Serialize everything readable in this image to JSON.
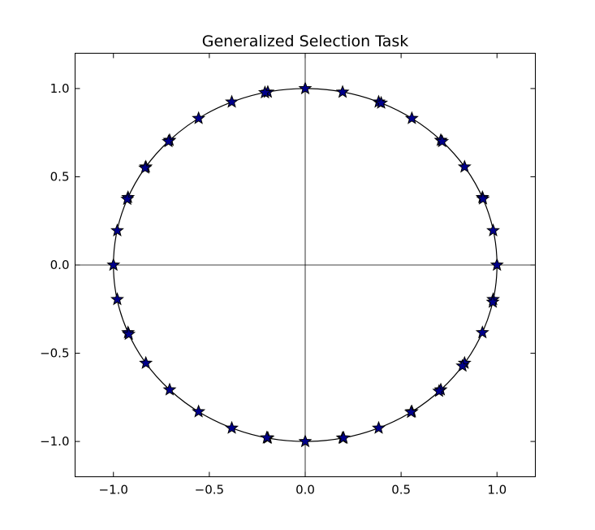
{
  "chart_data": {
    "type": "scatter",
    "title": "Generalized Selection Task",
    "xlabel": "",
    "ylabel": "",
    "xlim": [
      -1.2,
      1.2
    ],
    "ylim": [
      -1.2,
      1.2
    ],
    "xticks": [
      -1.0,
      -0.5,
      0.0,
      0.5,
      1.0
    ],
    "yticks": [
      -1.0,
      -0.5,
      0.0,
      0.5,
      1.0
    ],
    "xtick_labels": [
      "−1.0",
      "−0.5",
      "0.0",
      "0.5",
      "1.0"
    ],
    "ytick_labels": [
      "−1.0",
      "−0.5",
      "0.0",
      "0.5",
      "1.0"
    ],
    "grid": false,
    "legend": "none",
    "reference_circle": {
      "center": [
        0,
        0
      ],
      "radius": 1.0,
      "color": "#000000"
    },
    "axis_lines": [
      {
        "x": 0
      },
      {
        "y": 0
      }
    ],
    "marker": "star",
    "marker_color": "#00008b",
    "marker_edge": "#000000",
    "points": {
      "x": [
        0.0,
        0.195,
        0.383,
        0.396,
        0.556,
        0.707,
        0.714,
        0.831,
        0.924,
        0.927,
        0.98,
        1.0,
        0.98,
        0.978,
        0.924,
        0.831,
        0.82,
        0.707,
        0.698,
        0.556,
        0.552,
        0.383,
        0.195,
        0.2,
        0.0,
        -0.195,
        -0.2,
        -0.383,
        -0.556,
        -0.707,
        -0.831,
        -0.924,
        -0.92,
        -0.98,
        -1.0,
        -0.98,
        -0.924,
        -0.928,
        -0.831,
        -0.835,
        -0.707,
        -0.713,
        -0.556,
        -0.383,
        -0.195,
        -0.21
      ],
      "y": [
        1.0,
        0.98,
        0.924,
        0.918,
        0.831,
        0.707,
        0.7,
        0.556,
        0.383,
        0.375,
        0.195,
        0.0,
        -0.195,
        -0.21,
        -0.383,
        -0.556,
        -0.572,
        -0.707,
        -0.715,
        -0.831,
        -0.834,
        -0.924,
        -0.98,
        -0.98,
        -1.0,
        -0.98,
        -0.979,
        -0.924,
        -0.831,
        -0.707,
        -0.556,
        -0.383,
        -0.392,
        -0.195,
        0.0,
        0.195,
        0.383,
        0.373,
        0.556,
        0.55,
        0.707,
        0.7,
        0.831,
        0.924,
        0.98,
        0.977
      ]
    }
  }
}
